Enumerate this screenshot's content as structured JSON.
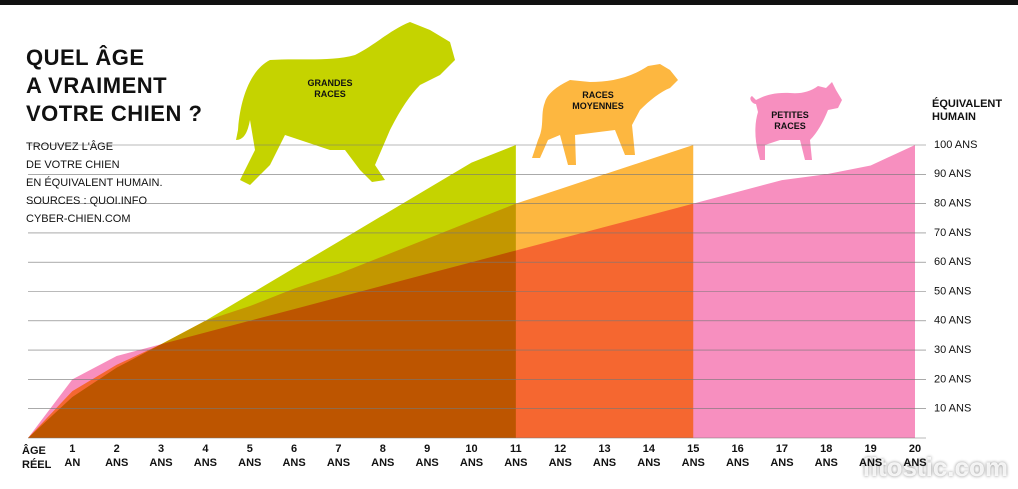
{
  "chart_data": {
    "type": "area",
    "title": "QUEL ÂGE\nA VRAIMENT\nVOTRE CHIEN ?",
    "subtitle": "TROUVEZ L'ÂGE\nDE VOTRE CHIEN\nEN ÉQUIVALENT HUMAIN.\nSOURCES : QUOI.INFO\nCYBER-CHIEN.COM",
    "y_label": "ÉQUIVALENT\nHUMAIN",
    "x_label": "ÂGE\nRÉEL",
    "watermark": "fitostic.com",
    "x": [
      0,
      1,
      2,
      3,
      4,
      5,
      6,
      7,
      8,
      9,
      10,
      11,
      12,
      13,
      14,
      15,
      16,
      17,
      18,
      19,
      20
    ],
    "series": [
      {
        "name": "PETITES RACES",
        "color": "#f78fbf",
        "values": [
          0,
          20,
          28,
          32,
          36,
          40,
          44,
          48,
          52,
          56,
          60,
          64,
          68,
          72,
          76,
          80,
          84,
          88,
          90,
          93,
          100
        ]
      },
      {
        "name": "RACES MOYENNES",
        "color": "#fdb740",
        "values": [
          0,
          16,
          25,
          32,
          40,
          45,
          51,
          56,
          62,
          68,
          74,
          80,
          85,
          90,
          95,
          100,
          null,
          null,
          null,
          null,
          null
        ]
      },
      {
        "name": "GRANDES RACES",
        "color": "#c5d300",
        "values": [
          0,
          14,
          24,
          32,
          40,
          49,
          58,
          67,
          76,
          85,
          94,
          100,
          null,
          null,
          null,
          null,
          null,
          null,
          null,
          null,
          null
        ]
      }
    ],
    "xlim": [
      0,
      20
    ],
    "xticks": [
      {
        "value": 1,
        "label": "1\nAN"
      },
      {
        "value": 2,
        "label": "2\nANS"
      },
      {
        "value": 3,
        "label": "3\nANS"
      },
      {
        "value": 4,
        "label": "4\nANS"
      },
      {
        "value": 5,
        "label": "5\nANS"
      },
      {
        "value": 6,
        "label": "6\nANS"
      },
      {
        "value": 7,
        "label": "7\nANS"
      },
      {
        "value": 8,
        "label": "8\nANS"
      },
      {
        "value": 9,
        "label": "9\nANS"
      },
      {
        "value": 10,
        "label": "10\nANS"
      },
      {
        "value": 11,
        "label": "11\nANS"
      },
      {
        "value": 12,
        "label": "12\nANS"
      },
      {
        "value": 13,
        "label": "13\nANS"
      },
      {
        "value": 14,
        "label": "14\nANS"
      },
      {
        "value": 15,
        "label": "15\nANS"
      },
      {
        "value": 16,
        "label": "16\nANS"
      },
      {
        "value": 17,
        "label": "17\nANS"
      },
      {
        "value": 18,
        "label": "18\nANS"
      },
      {
        "value": 19,
        "label": "19\nANS"
      },
      {
        "value": 20,
        "label": "20\nANS"
      }
    ],
    "ylim": [
      0,
      100
    ],
    "yticks": [
      {
        "value": 10,
        "label": "10 ANS"
      },
      {
        "value": 20,
        "label": "20 ANS"
      },
      {
        "value": 30,
        "label": "30 ANS"
      },
      {
        "value": 40,
        "label": "40 ANS"
      },
      {
        "value": 50,
        "label": "50 ANS"
      },
      {
        "value": 60,
        "label": "60 ANS"
      },
      {
        "value": 70,
        "label": "70 ANS"
      },
      {
        "value": 80,
        "label": "80 ANS"
      },
      {
        "value": 90,
        "label": "90 ANS"
      },
      {
        "value": 100,
        "label": "100 ANS"
      }
    ],
    "grid": true,
    "blend": "multiply"
  }
}
